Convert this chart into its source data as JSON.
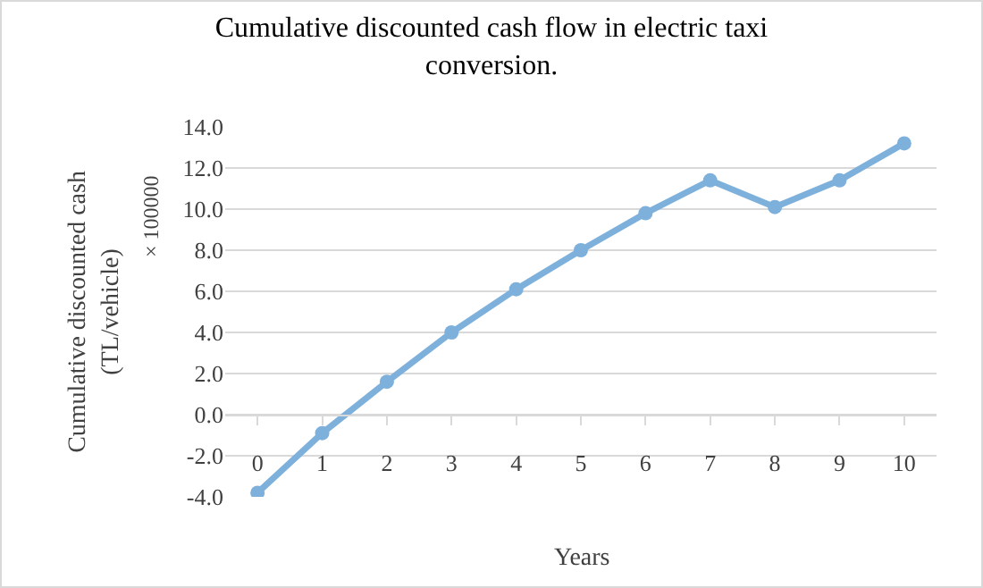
{
  "chart_data": {
    "type": "line",
    "title": "Cumulative discounted cash flow in electric taxi conversion.",
    "xlabel": "Years",
    "ylabel": "Cumulative discounted cash (TL/vehicle)",
    "annotations": [
      "× 100000"
    ],
    "categories": [
      "0",
      "1",
      "2",
      "3",
      "4",
      "5",
      "6",
      "7",
      "8",
      "9",
      "10"
    ],
    "series": [
      {
        "color": "#7eb0dc",
        "values": [
          -3.8,
          -0.9,
          1.6,
          4.0,
          6.1,
          8.0,
          9.8,
          11.4,
          10.1,
          11.4,
          13.2
        ]
      }
    ],
    "ylim": [
      -4,
      14
    ],
    "yticks": [
      {
        "value": -4,
        "label": "-4.0"
      },
      {
        "value": -2,
        "label": "-2.0"
      },
      {
        "value": 0,
        "label": "0.0"
      },
      {
        "value": 2,
        "label": "2.0"
      },
      {
        "value": 4,
        "label": "4.0"
      },
      {
        "value": 6,
        "label": "6.0"
      },
      {
        "value": 8,
        "label": "8.0"
      },
      {
        "value": 10,
        "label": "10.0"
      },
      {
        "value": 12,
        "label": "12.0"
      },
      {
        "value": 14,
        "label": "14.0"
      }
    ],
    "grid": "y",
    "marker": "circle",
    "line_style": "solid"
  }
}
